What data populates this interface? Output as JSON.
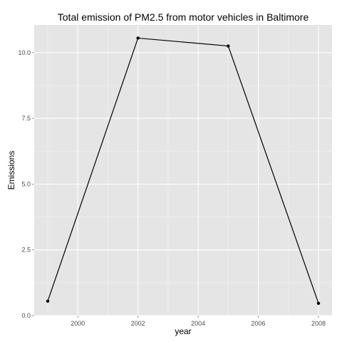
{
  "chart_data": {
    "type": "line",
    "title": "Total emission of PM2.5 from motor vehicles in Baltimore",
    "xlabel": "year",
    "ylabel": "Emissions",
    "x": [
      1999,
      2002,
      2005,
      2008
    ],
    "series": [
      {
        "values": [
          0.55,
          10.55,
          10.25,
          0.47
        ]
      }
    ],
    "xlim": [
      1998.55,
      2008.45
    ],
    "ylim": [
      0,
      11.05
    ],
    "xticks": [
      2000,
      2002,
      2004,
      2006,
      2008
    ],
    "xtick_labels": [
      "2000",
      "2002",
      "2004",
      "2006",
      "2008"
    ],
    "yticks": [
      0,
      2.5,
      5,
      7.5,
      10
    ],
    "ytick_labels": [
      "0.0",
      "2.5",
      "5.0",
      "7.5",
      "10.0"
    ],
    "grid": true,
    "legend": "none",
    "colors": {
      "panel_background": "#e5e5e5",
      "grid_major": "#ffffff",
      "grid_minor": "#f2f2f2",
      "line": "#000000",
      "point": "#000000",
      "tick_label": "#4d4d4d"
    }
  }
}
